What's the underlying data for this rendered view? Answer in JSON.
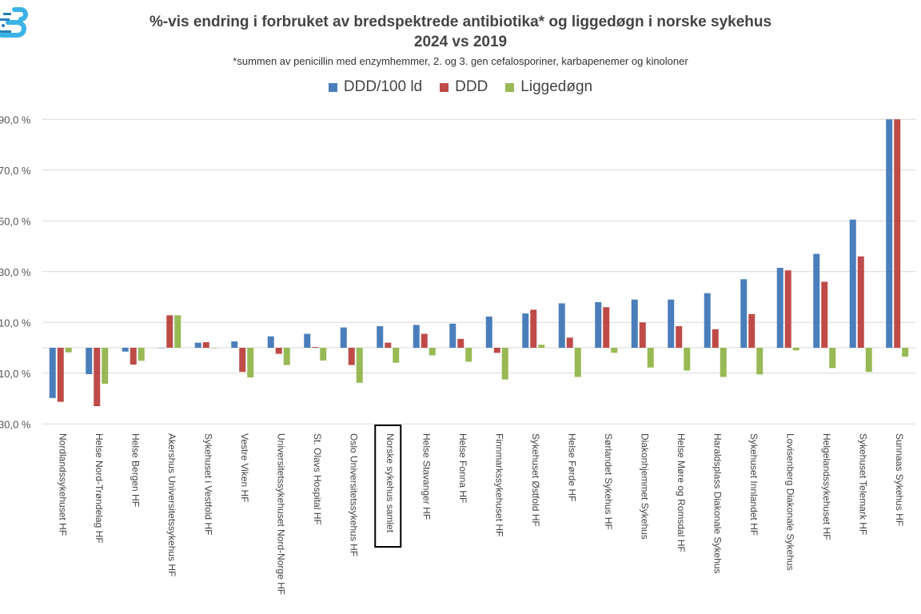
{
  "chart_data": {
    "type": "bar",
    "title": "%-vis endring i forbruket av bredspektrede antibiotika* og liggedøgn i norske sykehus",
    "title_line2": "2024 vs 2019",
    "subtitle": "*summen av penicillin med enzymhemmer, 2. og 3. gen cefalosporiner, karbapenemer og kinoloner",
    "legend_position": "top",
    "ylim": [
      -30,
      90
    ],
    "yticks": [
      {
        "value": 90,
        "label": "90,0 %"
      },
      {
        "value": 70,
        "label": "70,0 %"
      },
      {
        "value": 50,
        "label": "50,0 %"
      },
      {
        "value": 30,
        "label": "30,0 %"
      },
      {
        "value": 10,
        "label": "10,0 %"
      },
      {
        "value": -10,
        "label": "10,0 %"
      },
      {
        "value": -30,
        "label": "30,0 %"
      }
    ],
    "grid": true,
    "highlighted_category": "Norske sykehus samlet",
    "categories": [
      "Nordlandssykehuset HF",
      "Helse Nord-Trøndelag HF",
      "Helse Bergen HF",
      "Akershus Universitetssykehus HF",
      "Sykehuset i Vestfold HF",
      "Vestre Viken HF",
      "Universitetssykehuset Nord-Norge HF",
      "St. Olavs Hospital HF",
      "Oslo Universitetssykehus HF",
      "Norske sykehus samlet",
      "Helse Stavanger HF",
      "Helse Fonna HF",
      "Finnmarkssykehuset HF",
      "Sykehuset Østfold HF",
      "Helse Førde HF",
      "Sørlandet Sykehus HF",
      "Diakonhjemmet Sykehus",
      "Helse Møre og Romsdal HF",
      "Haraldsplass Diakonale Sykehus",
      "Sykehuset Innlandet HF",
      "Lovisenberg Diakonale Sykehus",
      "Helgelandssykehuset HF",
      "Sykehuset Telemark HF",
      "Sunnaas Sykehus HF"
    ],
    "series": [
      {
        "name": "DDD/100 ld",
        "color": "#4a7ebb",
        "values": [
          -19.8,
          -10.4,
          -1.5,
          0,
          2,
          2.5,
          4.5,
          5.5,
          8,
          8.5,
          9,
          9.5,
          12.3,
          13.5,
          17.5,
          18,
          19,
          19,
          21.5,
          27,
          31.5,
          37,
          50.5,
          90
        ]
      },
      {
        "name": "DDD",
        "color": "#be4b48",
        "values": [
          -21.3,
          -23,
          -6.6,
          12.8,
          2.2,
          -9.5,
          -2.4,
          0.3,
          -6.8,
          2,
          5.5,
          3.5,
          -2,
          15,
          4,
          16,
          10,
          8.5,
          7.3,
          13.3,
          30.5,
          26,
          36,
          90
        ]
      },
      {
        "name": "Liggedøgn",
        "color": "#98b954",
        "values": [
          -1.8,
          -14.2,
          -5.1,
          12.8,
          0,
          -11.7,
          -6.8,
          -5,
          -13.8,
          -5.9,
          -3,
          -5.5,
          -12.5,
          1.2,
          -11.5,
          -2,
          -7.8,
          -9,
          -11.5,
          -10.5,
          -1,
          -8,
          -9.5,
          -3.5
        ]
      }
    ]
  }
}
